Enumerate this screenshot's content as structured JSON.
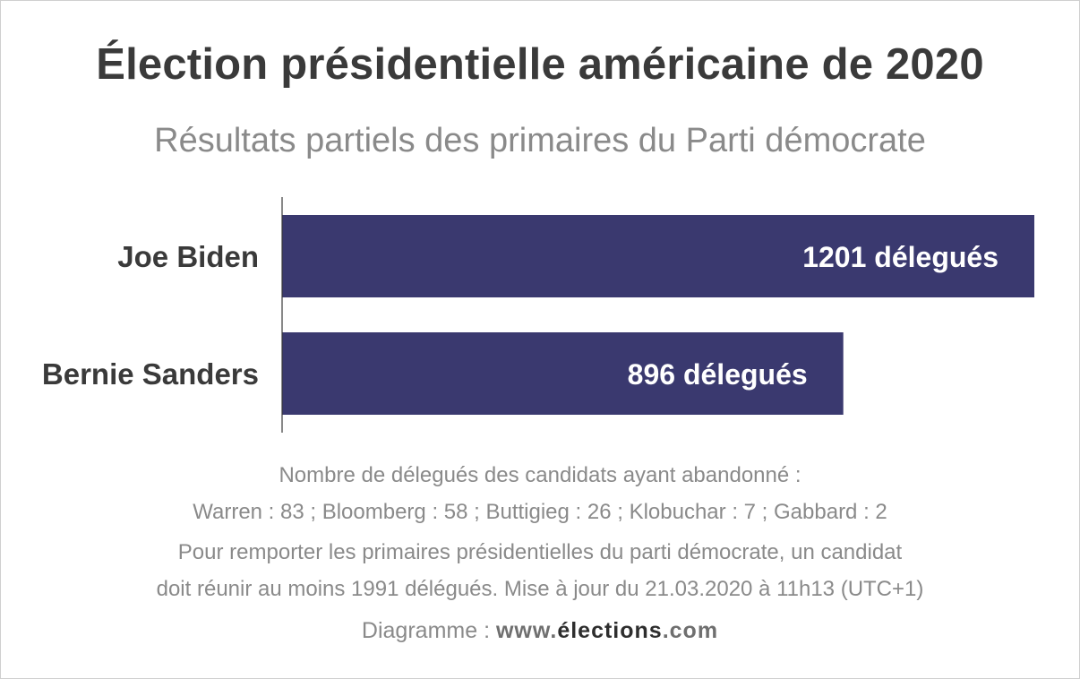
{
  "header": {
    "title": "Élection présidentielle américaine de 2020",
    "subtitle": "Résultats partiels des primaires du Parti démocrate"
  },
  "chart_data": {
    "type": "bar",
    "orientation": "horizontal",
    "categories": [
      "Joe Biden",
      "Bernie Sanders"
    ],
    "values": [
      1201,
      896
    ],
    "data_labels": [
      "1201 délegués",
      "896 délegués"
    ],
    "xlim": [
      0,
      1201
    ],
    "grid": false,
    "legend": "none",
    "bar_color": "#3a396f"
  },
  "notes": {
    "line1": "Nombre de délegués des candidats ayant abandonné :",
    "line2": "Warren : 83 ; Bloomberg : 58 ; Buttigieg : 26 ; Klobuchar : 7 ; Gabbard : 2",
    "line3": "Pour remporter les primaires présidentielles du parti démocrate, un candidat",
    "line4": "doit réunir au moins 1991 délégués. Mise à jour du 21.03.2020 à 11h13 (UTC+1)"
  },
  "credit": {
    "label": "Diagramme :",
    "site_prefix": "www.",
    "site_name": "élections",
    "site_suffix": ".com"
  }
}
